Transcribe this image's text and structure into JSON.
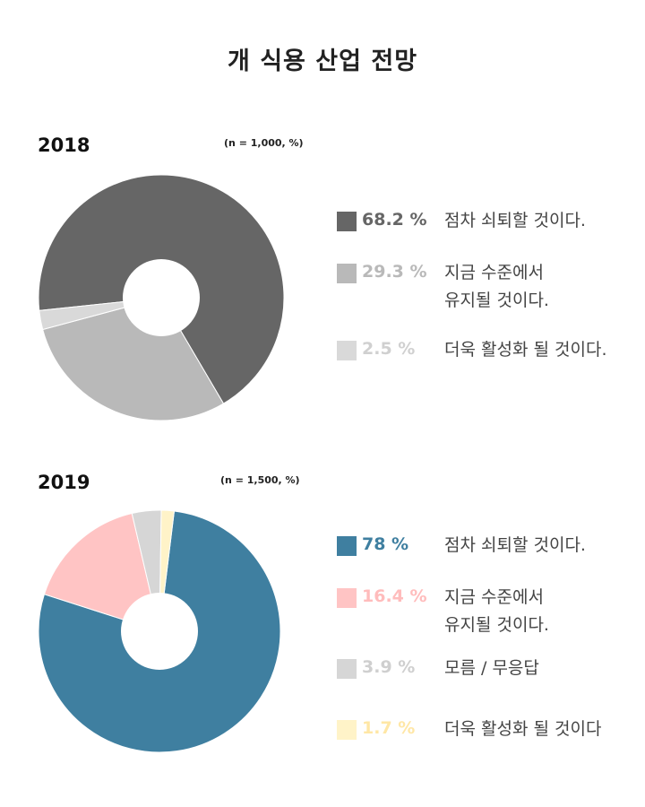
{
  "title": "개 식용 산업 전망",
  "charts": [
    {
      "year": "2018",
      "note": "(n = 1,000, %)",
      "items": [
        {
          "value": "68.2 %",
          "label": "점차 쇠퇴할 것이다.",
          "color": "#666666",
          "text_color": "#666666"
        },
        {
          "value": "29.3 %",
          "label": "지금 수준에서\n유지될 것이다.",
          "color": "#b9b9b9",
          "text_color": "#b9b9b9"
        },
        {
          "value": "2.5 %",
          "label": "더욱 활성화 될 것이다.",
          "color": "#d9d9d9",
          "text_color": "#d0d0d0"
        }
      ]
    },
    {
      "year": "2019",
      "note": "(n = 1,500, %)",
      "items": [
        {
          "value": "78 %",
          "label": "점차 쇠퇴할 것이다.",
          "color": "#3f7fa0",
          "text_color": "#3f7fa0"
        },
        {
          "value": "16.4 %",
          "label": "지금 수준에서\n유지될 것이다.",
          "color": "#ffc4c4",
          "text_color": "#ffbcbc"
        },
        {
          "value": "3.9 %",
          "label": "모름 / 무응답",
          "color": "#d6d6d6",
          "text_color": "#cfcfcf"
        },
        {
          "value": "1.7 %",
          "label": "더욱 활성화 될 것이다",
          "color": "#fff3c8",
          "text_color": "#ffe7a6"
        }
      ]
    }
  ],
  "chart_data": [
    {
      "type": "pie",
      "title": "2018",
      "categories": [
        "점차 쇠퇴할 것이다.",
        "지금 수준에서 유지될 것이다.",
        "더욱 활성화 될 것이다."
      ],
      "values": [
        68.2,
        29.3,
        2.5
      ],
      "colors": [
        "#666666",
        "#b9b9b9",
        "#d9d9d9"
      ],
      "legend": "right"
    },
    {
      "type": "pie",
      "title": "2019",
      "categories": [
        "점차 쇠퇴할 것이다.",
        "지금 수준에서 유지될 것이다.",
        "모름 / 무응답",
        "더욱 활성화 될 것이다"
      ],
      "values": [
        78,
        16.4,
        3.9,
        1.7
      ],
      "colors": [
        "#3f7fa0",
        "#ffc4c4",
        "#d6d6d6",
        "#fff3c8"
      ],
      "legend": "right"
    }
  ]
}
